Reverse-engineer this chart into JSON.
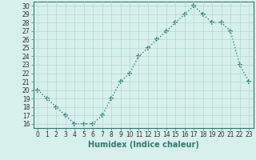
{
  "x": [
    0,
    1,
    2,
    3,
    4,
    5,
    6,
    7,
    8,
    9,
    10,
    11,
    12,
    13,
    14,
    15,
    16,
    17,
    18,
    19,
    20,
    21,
    22,
    23
  ],
  "y": [
    20,
    19,
    18,
    17,
    16,
    16,
    16,
    17,
    19,
    21,
    22,
    24,
    25,
    26,
    27,
    28,
    29,
    30,
    29,
    28,
    28,
    27,
    23,
    21
  ],
  "line_color": "#2d7a6e",
  "marker": "+",
  "marker_size": 4,
  "marker_edge_width": 1.2,
  "bg_color": "#d8f0ec",
  "grid_color": "#b0d8d2",
  "xlabel": "Humidex (Indice chaleur)",
  "ylim": [
    15.5,
    30.5
  ],
  "xlim": [
    -0.5,
    23.5
  ],
  "yticks": [
    16,
    17,
    18,
    19,
    20,
    21,
    22,
    23,
    24,
    25,
    26,
    27,
    28,
    29,
    30
  ],
  "xticks": [
    0,
    1,
    2,
    3,
    4,
    5,
    6,
    7,
    8,
    9,
    10,
    11,
    12,
    13,
    14,
    15,
    16,
    17,
    18,
    19,
    20,
    21,
    22,
    23
  ],
  "tick_label_size": 5.5,
  "xlabel_size": 7,
  "line_width": 1.0
}
